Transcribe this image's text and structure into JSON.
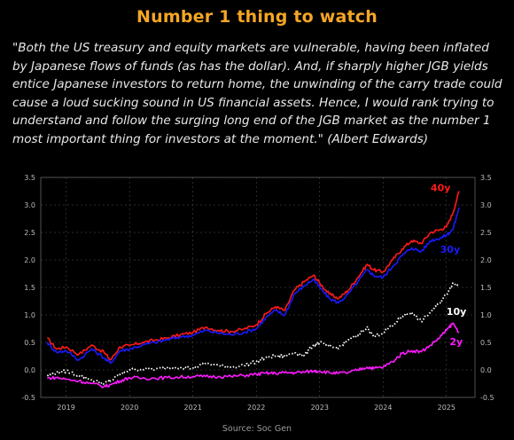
{
  "header": {
    "title": "Number 1 thing to watch",
    "quote": "\"Both the US treasury and equity markets are vulnerable, having been inflated by Japanese flows of funds (as has the dollar). And, if sharply higher JGB yields entice Japanese investors to return home, the unwinding of the carry trade could cause a loud sucking sound in US financial assets. Hence, I would rank trying to understand and follow the surging long end of the JGB market as the number 1 most important thing for investors at the moment.\" (Albert Edwards)"
  },
  "footer": {
    "source": "Source: Soc Gen"
  },
  "chart_data": {
    "type": "line",
    "x_range": [
      "2018-09",
      "2025-06"
    ],
    "ylim": [
      -0.5,
      3.5
    ],
    "yticks": [
      "-0.5",
      "0.0",
      "0.5",
      "1.0",
      "1.5",
      "2.0",
      "2.5",
      "3.0",
      "3.5"
    ],
    "xticks": [
      "2019",
      "2020",
      "2021",
      "2022",
      "2023",
      "2024",
      "2025"
    ],
    "ytick_values": [
      -0.5,
      0.0,
      0.5,
      1.0,
      1.5,
      2.0,
      2.5,
      3.0,
      3.5
    ],
    "xtick_values": [
      2019.0,
      2020.0,
      2021.0,
      2022.0,
      2023.0,
      2024.0,
      2025.0
    ],
    "dual_y_axis": true,
    "grid": true,
    "legend": "inline labels at line ends",
    "colors": {
      "background": "#000000",
      "title": "#f5a623",
      "grid": "#555555"
    },
    "series": [
      {
        "name": "40y",
        "color": "#ff1a1a",
        "style": "solid",
        "x": [
          2018.7,
          2018.85,
          2019.0,
          2019.2,
          2019.4,
          2019.6,
          2019.7,
          2019.85,
          2020.0,
          2020.2,
          2020.4,
          2020.6,
          2020.8,
          2021.0,
          2021.2,
          2021.4,
          2021.6,
          2021.8,
          2022.0,
          2022.15,
          2022.3,
          2022.45,
          2022.6,
          2022.75,
          2022.9,
          2023.0,
          2023.15,
          2023.3,
          2023.45,
          2023.6,
          2023.75,
          2023.85,
          2024.0,
          2024.15,
          2024.3,
          2024.45,
          2024.6,
          2024.75,
          2024.9,
          2025.0,
          2025.1,
          2025.2
        ],
        "y": [
          0.58,
          0.38,
          0.42,
          0.28,
          0.45,
          0.32,
          0.18,
          0.42,
          0.44,
          0.5,
          0.54,
          0.58,
          0.64,
          0.68,
          0.78,
          0.72,
          0.7,
          0.74,
          0.82,
          1.02,
          1.15,
          1.08,
          1.45,
          1.6,
          1.72,
          1.58,
          1.38,
          1.3,
          1.45,
          1.68,
          1.92,
          1.82,
          1.78,
          2.0,
          2.2,
          2.35,
          2.3,
          2.5,
          2.55,
          2.6,
          2.85,
          3.25
        ]
      },
      {
        "name": "30y",
        "color": "#1a1aff",
        "style": "solid",
        "x": [
          2018.7,
          2018.85,
          2019.0,
          2019.2,
          2019.4,
          2019.6,
          2019.7,
          2019.85,
          2020.0,
          2020.2,
          2020.4,
          2020.6,
          2020.8,
          2021.0,
          2021.2,
          2021.4,
          2021.6,
          2021.8,
          2022.0,
          2022.15,
          2022.3,
          2022.45,
          2022.6,
          2022.75,
          2022.9,
          2023.0,
          2023.15,
          2023.3,
          2023.45,
          2023.6,
          2023.75,
          2023.85,
          2024.0,
          2024.15,
          2024.3,
          2024.45,
          2024.6,
          2024.75,
          2024.9,
          2025.0,
          2025.1,
          2025.2
        ],
        "y": [
          0.5,
          0.32,
          0.35,
          0.18,
          0.38,
          0.22,
          0.12,
          0.35,
          0.38,
          0.45,
          0.5,
          0.55,
          0.6,
          0.63,
          0.72,
          0.67,
          0.64,
          0.68,
          0.75,
          0.95,
          1.08,
          1.0,
          1.38,
          1.52,
          1.65,
          1.5,
          1.3,
          1.22,
          1.38,
          1.6,
          1.82,
          1.72,
          1.68,
          1.88,
          2.08,
          2.22,
          2.15,
          2.35,
          2.4,
          2.45,
          2.55,
          2.95
        ]
      },
      {
        "name": "10y",
        "color": "#ffffff",
        "style": "dotted",
        "x": [
          2018.7,
          2018.85,
          2019.0,
          2019.2,
          2019.4,
          2019.6,
          2019.7,
          2019.85,
          2020.0,
          2020.2,
          2020.4,
          2020.6,
          2020.8,
          2021.0,
          2021.2,
          2021.4,
          2021.6,
          2021.8,
          2022.0,
          2022.15,
          2022.3,
          2022.45,
          2022.6,
          2022.75,
          2022.9,
          2023.0,
          2023.15,
          2023.3,
          2023.45,
          2023.6,
          2023.75,
          2023.85,
          2024.0,
          2024.15,
          2024.3,
          2024.45,
          2024.6,
          2024.75,
          2024.9,
          2025.0,
          2025.1,
          2025.2
        ],
        "y": [
          -0.1,
          -0.05,
          -0.02,
          -0.1,
          -0.18,
          -0.25,
          -0.2,
          -0.08,
          0.0,
          0.02,
          0.01,
          0.04,
          0.05,
          0.03,
          0.12,
          0.08,
          0.05,
          0.08,
          0.15,
          0.22,
          0.25,
          0.25,
          0.32,
          0.26,
          0.45,
          0.5,
          0.42,
          0.4,
          0.55,
          0.62,
          0.78,
          0.6,
          0.68,
          0.8,
          0.98,
          1.05,
          0.88,
          1.05,
          1.22,
          1.38,
          1.58,
          1.52
        ]
      },
      {
        "name": "2y",
        "color": "#ff1aff",
        "style": "solid",
        "x": [
          2018.7,
          2018.85,
          2019.0,
          2019.2,
          2019.4,
          2019.6,
          2019.7,
          2019.85,
          2020.0,
          2020.2,
          2020.4,
          2020.6,
          2020.8,
          2021.0,
          2021.2,
          2021.4,
          2021.6,
          2021.8,
          2022.0,
          2022.15,
          2022.3,
          2022.45,
          2022.6,
          2022.75,
          2022.9,
          2023.0,
          2023.15,
          2023.3,
          2023.45,
          2023.6,
          2023.75,
          2023.85,
          2024.0,
          2024.15,
          2024.3,
          2024.45,
          2024.6,
          2024.75,
          2024.9,
          2025.0,
          2025.1,
          2025.2
        ],
        "y": [
          -0.15,
          -0.14,
          -0.17,
          -0.2,
          -0.25,
          -0.3,
          -0.27,
          -0.2,
          -0.14,
          -0.15,
          -0.15,
          -0.14,
          -0.13,
          -0.12,
          -0.12,
          -0.12,
          -0.12,
          -0.1,
          -0.08,
          -0.06,
          -0.06,
          -0.05,
          -0.05,
          -0.04,
          -0.02,
          -0.02,
          -0.05,
          -0.06,
          -0.05,
          0.0,
          0.05,
          0.03,
          0.05,
          0.15,
          0.3,
          0.35,
          0.33,
          0.45,
          0.6,
          0.72,
          0.85,
          0.68
        ]
      }
    ]
  }
}
